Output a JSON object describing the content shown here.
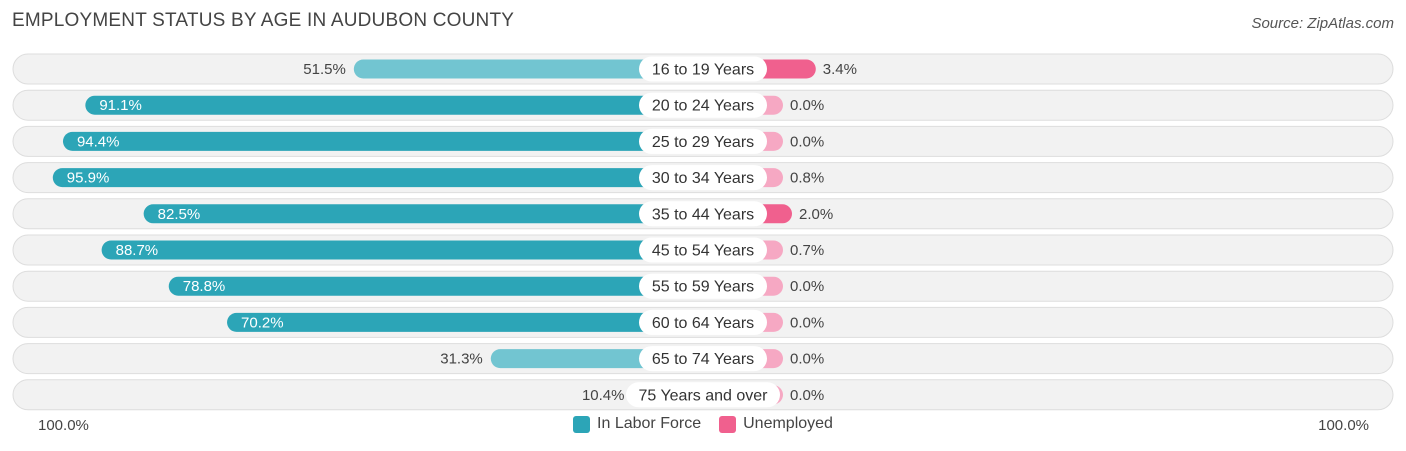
{
  "header": {
    "title": "EMPLOYMENT STATUS BY AGE IN AUDUBON COUNTY",
    "source": "Source: ZipAtlas.com"
  },
  "colors": {
    "labor_dark": "#2ca5b7",
    "labor_light": "#72c5d1",
    "unemp_dark": "#f0608e",
    "unemp_light": "#f6a8c3",
    "row_bg": "#f2f2f2",
    "row_border": "#dddddd"
  },
  "axis": {
    "left_label": "100.0%",
    "right_label": "100.0%"
  },
  "legend": {
    "labor_label": "In Labor Force",
    "unemp_label": "Unemployed"
  },
  "chart_data": {
    "type": "bar",
    "orientation": "horizontal-diverging",
    "title": "EMPLOYMENT STATUS BY AGE IN AUDUBON COUNTY",
    "categories": [
      "16 to 19 Years",
      "20 to 24 Years",
      "25 to 29 Years",
      "30 to 34 Years",
      "35 to 44 Years",
      "45 to 54 Years",
      "55 to 59 Years",
      "60 to 64 Years",
      "65 to 74 Years",
      "75 Years and over"
    ],
    "series": [
      {
        "name": "In Labor Force",
        "values": [
          51.5,
          91.1,
          94.4,
          95.9,
          82.5,
          88.7,
          78.8,
          70.2,
          31.3,
          10.4
        ],
        "labels": [
          "51.5%",
          "91.1%",
          "94.4%",
          "95.9%",
          "82.5%",
          "88.7%",
          "78.8%",
          "70.2%",
          "31.3%",
          "10.4%"
        ]
      },
      {
        "name": "Unemployed",
        "values": [
          3.4,
          0.0,
          0.0,
          0.8,
          2.0,
          0.7,
          0.0,
          0.0,
          0.0,
          0.0
        ],
        "labels": [
          "3.4%",
          "0.0%",
          "0.0%",
          "0.8%",
          "2.0%",
          "0.7%",
          "0.0%",
          "0.0%",
          "0.0%",
          "0.0%"
        ]
      }
    ],
    "xlim": [
      -100,
      100
    ],
    "legend_position": "bottom-center"
  }
}
